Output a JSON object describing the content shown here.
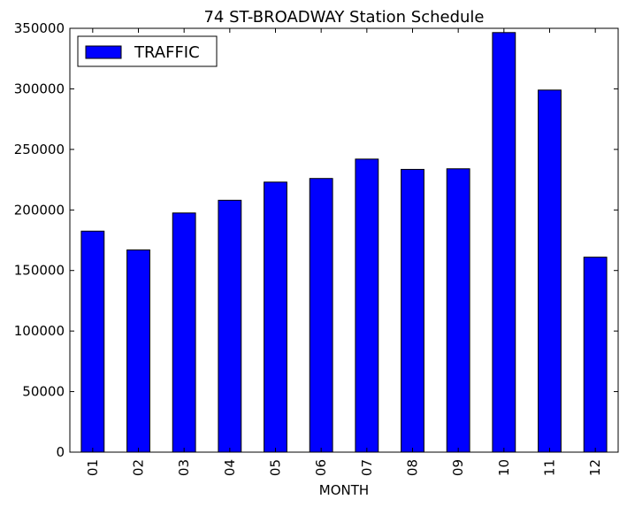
{
  "chart_data": {
    "type": "bar",
    "title": "74 ST-BROADWAY Station Schedule",
    "xlabel": "MONTH",
    "ylabel": "",
    "categories": [
      "01",
      "02",
      "03",
      "04",
      "05",
      "06",
      "07",
      "08",
      "09",
      "10",
      "11",
      "12"
    ],
    "series": [
      {
        "name": "TRAFFIC",
        "color": "#0000ff",
        "values": [
          182500,
          167000,
          197500,
          208000,
          223000,
          226000,
          242000,
          233500,
          234000,
          346500,
          299000,
          161000
        ]
      }
    ],
    "ylim": [
      0,
      350000
    ],
    "yticks": [
      "0",
      "50000",
      "100000",
      "150000",
      "200000",
      "250000",
      "300000",
      "350000"
    ],
    "grid": false,
    "legend_position": "top-left"
  }
}
